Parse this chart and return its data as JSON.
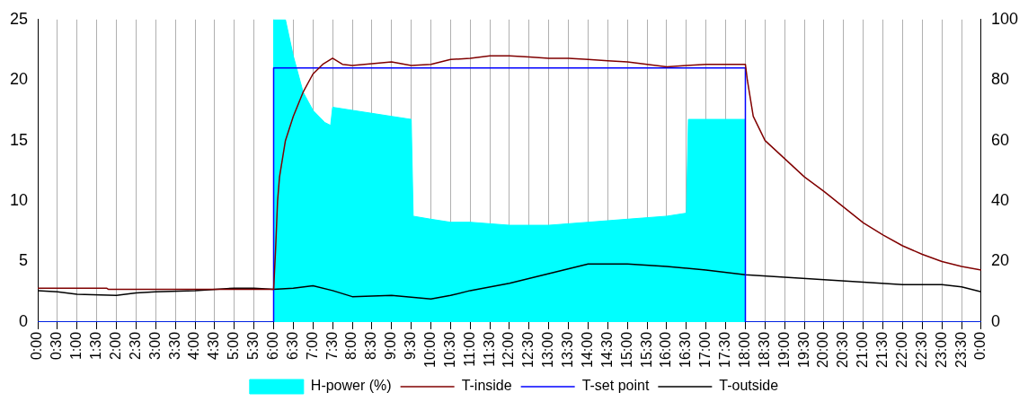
{
  "chart_data": {
    "type": "line",
    "xlim": [
      0,
      24
    ],
    "xticks": [
      {
        "value": 0,
        "label": "0:00"
      },
      {
        "value": 0.5,
        "label": "0:30"
      },
      {
        "value": 1,
        "label": "1:00"
      },
      {
        "value": 1.5,
        "label": "1:30"
      },
      {
        "value": 2,
        "label": "2:00"
      },
      {
        "value": 2.5,
        "label": "2:30"
      },
      {
        "value": 3,
        "label": "3:00"
      },
      {
        "value": 3.5,
        "label": "3:30"
      },
      {
        "value": 4,
        "label": "4:00"
      },
      {
        "value": 4.5,
        "label": "4:30"
      },
      {
        "value": 5,
        "label": "5:00"
      },
      {
        "value": 5.5,
        "label": "5:30"
      },
      {
        "value": 6,
        "label": "6:00"
      },
      {
        "value": 6.5,
        "label": "6:30"
      },
      {
        "value": 7,
        "label": "7:00"
      },
      {
        "value": 7.5,
        "label": "7:30"
      },
      {
        "value": 8,
        "label": "8:00"
      },
      {
        "value": 8.5,
        "label": "8:30"
      },
      {
        "value": 9,
        "label": "9:00"
      },
      {
        "value": 9.5,
        "label": "9:30"
      },
      {
        "value": 10,
        "label": "10:00"
      },
      {
        "value": 10.5,
        "label": "10:30"
      },
      {
        "value": 11,
        "label": "11:00"
      },
      {
        "value": 11.5,
        "label": "11:30"
      },
      {
        "value": 12,
        "label": "12:00"
      },
      {
        "value": 12.5,
        "label": "12:30"
      },
      {
        "value": 13,
        "label": "13:00"
      },
      {
        "value": 13.5,
        "label": "13:30"
      },
      {
        "value": 14,
        "label": "14:00"
      },
      {
        "value": 14.5,
        "label": "14:30"
      },
      {
        "value": 15,
        "label": "15:00"
      },
      {
        "value": 15.5,
        "label": "15:30"
      },
      {
        "value": 16,
        "label": "16:00"
      },
      {
        "value": 16.5,
        "label": "16:30"
      },
      {
        "value": 17,
        "label": "17:00"
      },
      {
        "value": 17.5,
        "label": "17:30"
      },
      {
        "value": 18,
        "label": "18:00"
      },
      {
        "value": 18.5,
        "label": "18:30"
      },
      {
        "value": 19,
        "label": "19:00"
      },
      {
        "value": 19.5,
        "label": "19:30"
      },
      {
        "value": 20,
        "label": "20:00"
      },
      {
        "value": 20.5,
        "label": "20:30"
      },
      {
        "value": 21,
        "label": "21:00"
      },
      {
        "value": 21.5,
        "label": "21:30"
      },
      {
        "value": 22,
        "label": "22:00"
      },
      {
        "value": 22.5,
        "label": "22:30"
      },
      {
        "value": 23,
        "label": "23:00"
      },
      {
        "value": 23.5,
        "label": "23:30"
      },
      {
        "value": 24,
        "label": "0:00"
      }
    ],
    "ylim": [
      0,
      25
    ],
    "yticks": [
      0,
      5,
      10,
      15,
      20,
      25
    ],
    "y2lim": [
      0,
      100
    ],
    "y2ticks": [
      0,
      20,
      40,
      60,
      80,
      100
    ],
    "grid": "x",
    "legend": "bottom",
    "marker": "none",
    "line_style": "solid",
    "series": [
      {
        "name": "H-power (%)",
        "type": "area",
        "axis": "y2",
        "color": "#00ffff",
        "x": [
          0,
          6,
          6,
          6.3,
          6.5,
          6.75,
          7,
          7.3,
          7.45,
          7.5,
          8,
          8.5,
          9,
          9.5,
          9.55,
          10,
          10.5,
          11,
          12,
          13,
          14,
          15,
          16,
          16.5,
          16.55,
          18,
          18,
          24
        ],
        "values": [
          0,
          0,
          100,
          100,
          88,
          76,
          70,
          66,
          65,
          71,
          70,
          69,
          68,
          67,
          35,
          34,
          33,
          33,
          32,
          32,
          33,
          34,
          35,
          36,
          67,
          67,
          0,
          0
        ]
      },
      {
        "name": "T-inside",
        "type": "line",
        "color": "#800000",
        "x": [
          0,
          1.75,
          1.8,
          6,
          6.05,
          6.1,
          6.15,
          6.3,
          6.5,
          6.75,
          7,
          7.25,
          7.5,
          7.75,
          8,
          9,
          9.5,
          10,
          10.5,
          11,
          11.5,
          12,
          12.5,
          13,
          13.5,
          14,
          14.5,
          15,
          15.5,
          16,
          16.5,
          17,
          18,
          18.05,
          18.2,
          18.5,
          19,
          19.5,
          20,
          20.5,
          21,
          21.5,
          22,
          22.5,
          23,
          23.5,
          24
        ],
        "values": [
          2.8,
          2.8,
          2.7,
          2.7,
          6,
          10,
          12,
          15,
          17,
          19,
          20.5,
          21.3,
          21.8,
          21.3,
          21.2,
          21.5,
          21.2,
          21.3,
          21.7,
          21.8,
          22,
          22,
          21.9,
          21.8,
          21.8,
          21.7,
          21.6,
          21.5,
          21.3,
          21.1,
          21.2,
          21.3,
          21.3,
          20,
          17,
          15,
          13.5,
          12,
          10.8,
          9.5,
          8.2,
          7.2,
          6.3,
          5.6,
          5,
          4.6,
          4.3
        ]
      },
      {
        "name": "T-set point",
        "type": "line",
        "color": "#0000ff",
        "x": [
          0,
          6,
          6,
          18,
          18,
          24
        ],
        "values": [
          0,
          0,
          21,
          21,
          0,
          0
        ]
      },
      {
        "name": "T-outside",
        "type": "line",
        "color": "#000000",
        "x": [
          0,
          0.5,
          1,
          2,
          2.5,
          3,
          4,
          5,
          5.5,
          6,
          6.5,
          7,
          7.5,
          8,
          9,
          10,
          10.5,
          11,
          12,
          13,
          14,
          15,
          16,
          17,
          18,
          19,
          20,
          21,
          22,
          23,
          23.5,
          24
        ],
        "values": [
          2.6,
          2.5,
          2.3,
          2.2,
          2.4,
          2.5,
          2.6,
          2.8,
          2.8,
          2.7,
          2.8,
          3,
          2.6,
          2.1,
          2.2,
          1.9,
          2.2,
          2.6,
          3.2,
          4,
          4.8,
          4.8,
          4.6,
          4.3,
          3.9,
          3.7,
          3.5,
          3.3,
          3.1,
          3.1,
          2.9,
          2.5
        ]
      }
    ]
  }
}
